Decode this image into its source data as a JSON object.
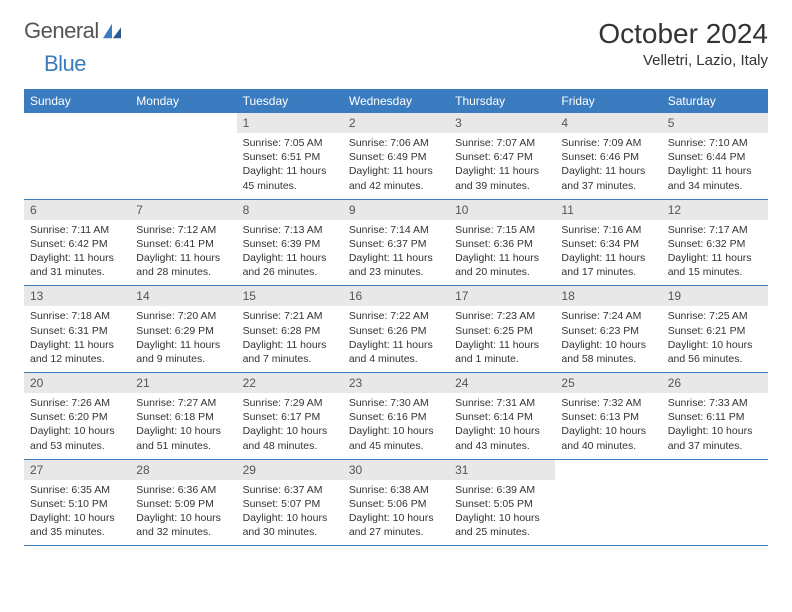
{
  "logo": {
    "text1": "General",
    "text2": "Blue"
  },
  "title": "October 2024",
  "location": "Velletri, Lazio, Italy",
  "colors": {
    "header_bg": "#3b7bbf",
    "header_fg": "#ffffff",
    "daynum_bg": "#e8e8e8",
    "text": "#333333",
    "border": "#3b7bbf"
  },
  "day_headers": [
    "Sunday",
    "Monday",
    "Tuesday",
    "Wednesday",
    "Thursday",
    "Friday",
    "Saturday"
  ],
  "weeks": [
    [
      {
        "n": "",
        "sr": "",
        "ss": "",
        "dl": ""
      },
      {
        "n": "",
        "sr": "",
        "ss": "",
        "dl": ""
      },
      {
        "n": "1",
        "sr": "7:05 AM",
        "ss": "6:51 PM",
        "dl": "11 hours 45 minutes."
      },
      {
        "n": "2",
        "sr": "7:06 AM",
        "ss": "6:49 PM",
        "dl": "11 hours and 42 minutes."
      },
      {
        "n": "3",
        "sr": "7:07 AM",
        "ss": "6:47 PM",
        "dl": "11 hours and 39 minutes."
      },
      {
        "n": "4",
        "sr": "7:09 AM",
        "ss": "6:46 PM",
        "dl": "11 hours and 37 minutes."
      },
      {
        "n": "5",
        "sr": "7:10 AM",
        "ss": "6:44 PM",
        "dl": "11 hours and 34 minutes."
      }
    ],
    [
      {
        "n": "6",
        "sr": "7:11 AM",
        "ss": "6:42 PM",
        "dl": "11 hours and 31 minutes."
      },
      {
        "n": "7",
        "sr": "7:12 AM",
        "ss": "6:41 PM",
        "dl": "11 hours and 28 minutes."
      },
      {
        "n": "8",
        "sr": "7:13 AM",
        "ss": "6:39 PM",
        "dl": "11 hours and 26 minutes."
      },
      {
        "n": "9",
        "sr": "7:14 AM",
        "ss": "6:37 PM",
        "dl": "11 hours and 23 minutes."
      },
      {
        "n": "10",
        "sr": "7:15 AM",
        "ss": "6:36 PM",
        "dl": "11 hours and 20 minutes."
      },
      {
        "n": "11",
        "sr": "7:16 AM",
        "ss": "6:34 PM",
        "dl": "11 hours and 17 minutes."
      },
      {
        "n": "12",
        "sr": "7:17 AM",
        "ss": "6:32 PM",
        "dl": "11 hours and 15 minutes."
      }
    ],
    [
      {
        "n": "13",
        "sr": "7:18 AM",
        "ss": "6:31 PM",
        "dl": "11 hours and 12 minutes."
      },
      {
        "n": "14",
        "sr": "7:20 AM",
        "ss": "6:29 PM",
        "dl": "11 hours and 9 minutes."
      },
      {
        "n": "15",
        "sr": "7:21 AM",
        "ss": "6:28 PM",
        "dl": "11 hours and 7 minutes."
      },
      {
        "n": "16",
        "sr": "7:22 AM",
        "ss": "6:26 PM",
        "dl": "11 hours and 4 minutes."
      },
      {
        "n": "17",
        "sr": "7:23 AM",
        "ss": "6:25 PM",
        "dl": "11 hours and 1 minute."
      },
      {
        "n": "18",
        "sr": "7:24 AM",
        "ss": "6:23 PM",
        "dl": "10 hours and 58 minutes."
      },
      {
        "n": "19",
        "sr": "7:25 AM",
        "ss": "6:21 PM",
        "dl": "10 hours and 56 minutes."
      }
    ],
    [
      {
        "n": "20",
        "sr": "7:26 AM",
        "ss": "6:20 PM",
        "dl": "10 hours and 53 minutes."
      },
      {
        "n": "21",
        "sr": "7:27 AM",
        "ss": "6:18 PM",
        "dl": "10 hours and 51 minutes."
      },
      {
        "n": "22",
        "sr": "7:29 AM",
        "ss": "6:17 PM",
        "dl": "10 hours and 48 minutes."
      },
      {
        "n": "23",
        "sr": "7:30 AM",
        "ss": "6:16 PM",
        "dl": "10 hours and 45 minutes."
      },
      {
        "n": "24",
        "sr": "7:31 AM",
        "ss": "6:14 PM",
        "dl": "10 hours and 43 minutes."
      },
      {
        "n": "25",
        "sr": "7:32 AM",
        "ss": "6:13 PM",
        "dl": "10 hours and 40 minutes."
      },
      {
        "n": "26",
        "sr": "7:33 AM",
        "ss": "6:11 PM",
        "dl": "10 hours and 37 minutes."
      }
    ],
    [
      {
        "n": "27",
        "sr": "6:35 AM",
        "ss": "5:10 PM",
        "dl": "10 hours and 35 minutes."
      },
      {
        "n": "28",
        "sr": "6:36 AM",
        "ss": "5:09 PM",
        "dl": "10 hours and 32 minutes."
      },
      {
        "n": "29",
        "sr": "6:37 AM",
        "ss": "5:07 PM",
        "dl": "10 hours and 30 minutes."
      },
      {
        "n": "30",
        "sr": "6:38 AM",
        "ss": "5:06 PM",
        "dl": "10 hours and 27 minutes."
      },
      {
        "n": "31",
        "sr": "6:39 AM",
        "ss": "5:05 PM",
        "dl": "10 hours and 25 minutes."
      },
      {
        "n": "",
        "sr": "",
        "ss": "",
        "dl": ""
      },
      {
        "n": "",
        "sr": "",
        "ss": "",
        "dl": ""
      }
    ]
  ],
  "labels": {
    "sunrise": "Sunrise:",
    "sunset": "Sunset:",
    "daylight": "Daylight:"
  }
}
